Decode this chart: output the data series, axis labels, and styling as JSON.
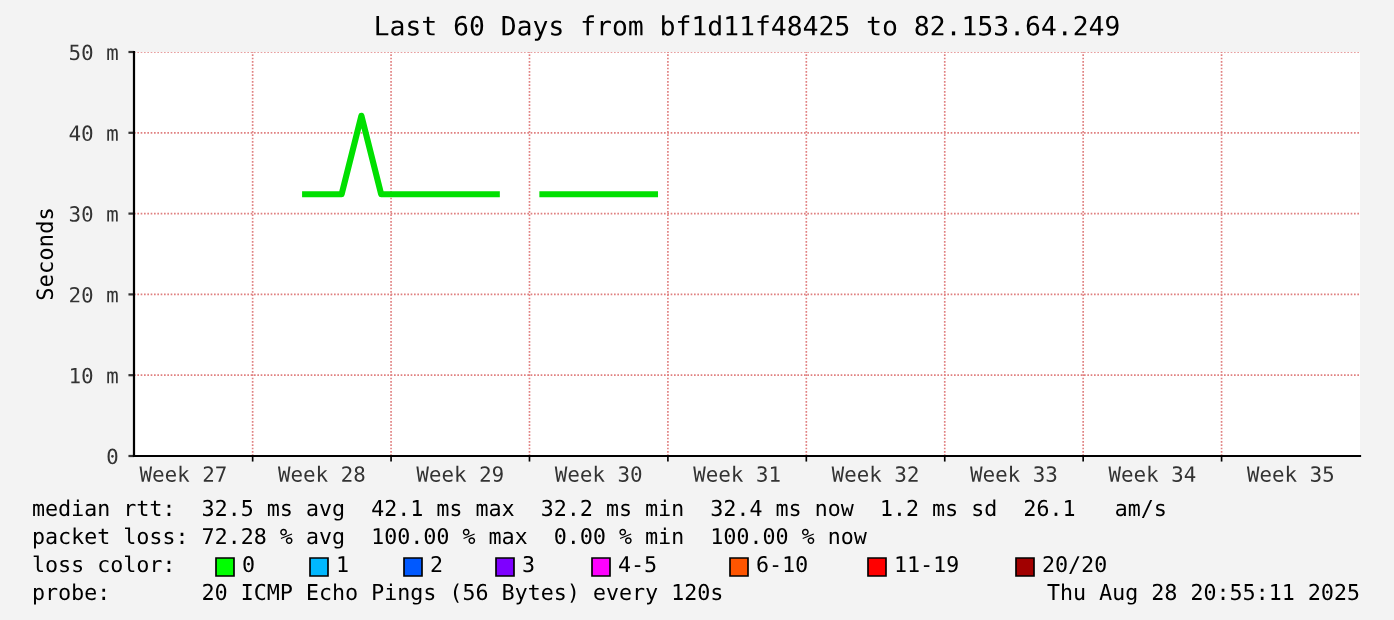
{
  "chart_data": {
    "type": "line",
    "title": "Last 60 Days from bf1d11f48425 to 82.153.64.249",
    "ylabel": "Seconds",
    "categories": [
      null,
      null,
      "Week 27",
      null,
      null,
      null,
      null,
      null,
      null,
      "Week 28",
      null,
      null,
      null,
      null,
      null,
      null,
      "Week 29",
      null,
      null,
      null,
      null,
      null,
      null,
      "Week 30",
      null,
      null,
      null,
      null,
      null,
      null,
      "Week 31",
      null,
      null,
      null,
      null,
      null,
      null,
      "Week 32",
      null,
      null,
      null,
      null,
      null,
      null,
      "Week 33",
      null,
      null,
      null,
      null,
      null,
      null,
      "Week 34",
      null,
      null,
      null,
      null,
      null,
      null,
      "Week 35",
      null,
      null,
      null
    ],
    "series": [
      {
        "color": "#00e000",
        "values": [
          null,
          null,
          null,
          null,
          null,
          null,
          null,
          null,
          32.4,
          32.4,
          32.4,
          42.1,
          32.4,
          32.4,
          32.4,
          32.4,
          32.4,
          32.4,
          32.4,
          null,
          32.4,
          32.4,
          32.4,
          32.4,
          32.4,
          32.4,
          32.4,
          null,
          null,
          null,
          null,
          null,
          null,
          null,
          null,
          null,
          null,
          null,
          null,
          null,
          null,
          null,
          null,
          null,
          null,
          null,
          null,
          null,
          null,
          null,
          null,
          null,
          null,
          null,
          null,
          null,
          null,
          null,
          null,
          null,
          null,
          null
        ]
      }
    ],
    "ylim": [
      0,
      50
    ],
    "yticks": [
      0,
      {
        "value": 10,
        "label": "10 m"
      },
      {
        "value": 20,
        "label": "20 m"
      },
      {
        "value": 30,
        "label": "30 m"
      },
      {
        "value": 40,
        "label": "40 m"
      },
      {
        "value": 50,
        "label": "50 m"
      }
    ],
    "grid": true,
    "marker": "none",
    "line_style": "solid",
    "annotations": [
      "median rtt:  32.5 ms avg  42.1 ms max  32.2 ms min  32.4 ms now  1.2 ms sd  26.1   am/s",
      "packet loss: 72.28 % avg  100.00 % max  0.00 % min  100.00 % now",
      "loss color:",
      "0",
      "1",
      "2",
      "3",
      "4-5",
      "6-10",
      "11-19",
      "20/20",
      "probe:       20 ICMP Echo Pings (56 Bytes) every 120s",
      "Thu Aug 28 20:55:11 2025"
    ]
  }
}
